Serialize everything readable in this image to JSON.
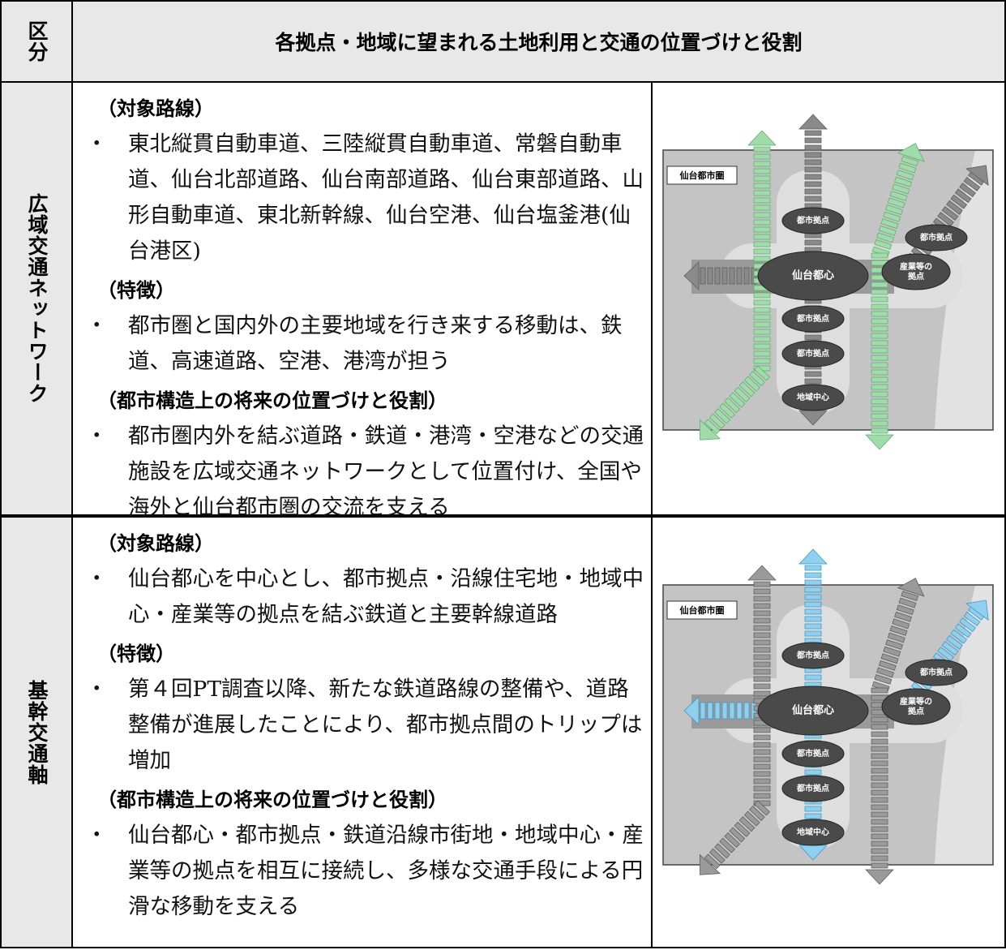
{
  "header": {
    "category": "区分",
    "title": "各拠点・地域に望まれる土地利用と交通の位置づけと役割"
  },
  "bullet_mark": "・",
  "rows": [
    {
      "category": "広域交通ネットワーク",
      "sections": [
        {
          "heading": "（対象路線）",
          "bullets": [
            "東北縦貫自動車道、三陸縦貫自動車道、常磐自動車道、仙台北部道路、仙台南部道路、仙台東部道路、山形自動車道、東北新幹線、仙台空港、仙台塩釜港(仙台港区)"
          ]
        },
        {
          "heading": "（特徴）",
          "bullets": [
            "都市圏と国内外の主要地域を行き来する移動は、鉄道、高速道路、空港、港湾が担う"
          ]
        },
        {
          "heading": "（都市構造上の将来の位置づけと役割）",
          "bullets": [
            "都市圏内外を結ぶ道路・鉄道・港湾・空港などの交通施設を広域交通ネットワークとして位置付け、全国や海外と仙台都市圏の交流を支える"
          ]
        }
      ],
      "diagram": {
        "region": "仙台都市圏",
        "nodes": [
          [
            "都市拠点"
          ],
          [
            "都市拠点"
          ],
          [
            "産業等の",
            "拠点"
          ],
          [
            "仙台都心"
          ],
          [
            "都市拠点"
          ],
          [
            "都市拠点"
          ],
          [
            "地域中心"
          ]
        ]
      }
    },
    {
      "category": "基幹交通軸",
      "sections": [
        {
          "heading": "（対象路線）",
          "bullets": [
            "仙台都心を中心とし、都市拠点・沿線住宅地・地域中心・産業等の拠点を結ぶ鉄道と主要幹線道路"
          ]
        },
        {
          "heading": "（特徴）",
          "bullets": [
            "第４回PT調査以降、新たな鉄道路線の整備や、道路整備が進展したことにより、都市拠点間のトリップは増加"
          ]
        },
        {
          "heading": "（都市構造上の将来の位置づけと役割）",
          "bullets": [
            "仙台都心・都市拠点・鉄道沿線市街地・地域中心・産業等の拠点を相互に接続し、多様な交通手段による円滑な移動を支える"
          ]
        }
      ],
      "diagram": {
        "region": "仙台都市圏",
        "nodes": [
          [
            "都市拠点"
          ],
          [
            "都市拠点"
          ],
          [
            "産業等の",
            "拠点"
          ],
          [
            "仙台都心"
          ],
          [
            "都市拠点"
          ],
          [
            "都市拠点"
          ],
          [
            "地域中心"
          ]
        ]
      }
    }
  ]
}
